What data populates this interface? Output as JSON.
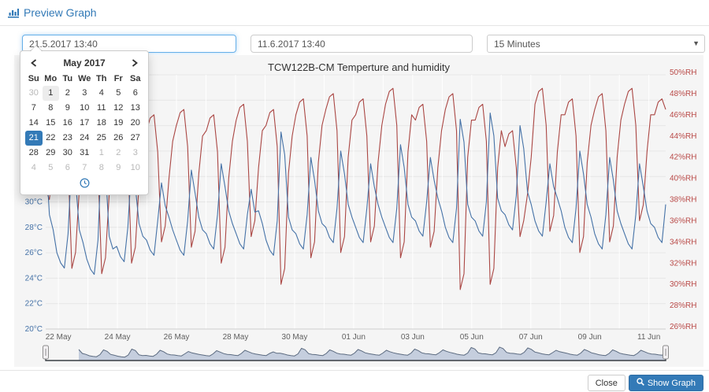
{
  "header": {
    "title": "Preview Graph"
  },
  "controls": {
    "start_value": "21.5.2017 13:40",
    "end_value": "11.6.2017 13:40",
    "interval_value": "15 Minutes"
  },
  "calendar": {
    "month_label": "May 2017",
    "weekdays": [
      "Su",
      "Mo",
      "Tu",
      "We",
      "Th",
      "Fr",
      "Sa"
    ],
    "weeks": [
      [
        {
          "d": "30",
          "o": 1
        },
        {
          "d": "1",
          "t": 1
        },
        {
          "d": "2"
        },
        {
          "d": "3"
        },
        {
          "d": "4"
        },
        {
          "d": "5"
        },
        {
          "d": "6"
        }
      ],
      [
        {
          "d": "7"
        },
        {
          "d": "8"
        },
        {
          "d": "9"
        },
        {
          "d": "10"
        },
        {
          "d": "11"
        },
        {
          "d": "12"
        },
        {
          "d": "13"
        }
      ],
      [
        {
          "d": "14"
        },
        {
          "d": "15"
        },
        {
          "d": "16"
        },
        {
          "d": "17"
        },
        {
          "d": "18"
        },
        {
          "d": "19"
        },
        {
          "d": "20"
        }
      ],
      [
        {
          "d": "21",
          "s": 1
        },
        {
          "d": "22"
        },
        {
          "d": "23"
        },
        {
          "d": "24"
        },
        {
          "d": "25"
        },
        {
          "d": "26"
        },
        {
          "d": "27"
        }
      ],
      [
        {
          "d": "28"
        },
        {
          "d": "29"
        },
        {
          "d": "30"
        },
        {
          "d": "31"
        },
        {
          "d": "1",
          "o": 1
        },
        {
          "d": "2",
          "o": 1
        },
        {
          "d": "3",
          "o": 1
        }
      ],
      [
        {
          "d": "4",
          "o": 1
        },
        {
          "d": "5",
          "o": 1
        },
        {
          "d": "6",
          "o": 1
        },
        {
          "d": "7",
          "o": 1
        },
        {
          "d": "8",
          "o": 1
        },
        {
          "d": "9",
          "o": 1
        },
        {
          "d": "10",
          "o": 1
        }
      ]
    ]
  },
  "footer": {
    "close_label": "Close",
    "show_graph_label": "Show Graph"
  },
  "colors": {
    "accent": "#337ab7",
    "temperature": "#4572a7",
    "humidity": "#aa4643",
    "chart_bg": "#f5f5f5",
    "grid_h": "#e6e6e6",
    "grid_v": "#ffffff",
    "nav_fill": "#bcc7d9",
    "nav_line": "#5c6b80",
    "nav_outline": "#3a3f45"
  },
  "chart_data": {
    "type": "line",
    "title": "TCW122B-CM Temperture and humidity",
    "x_range": {
      "start": "21 May 2017 13:40",
      "end": "11 Jun 2017 13:40"
    },
    "sample_interval_hours": 3,
    "x_tick_labels": [
      "22 May",
      "24 May",
      "26 May",
      "28 May",
      "30 May",
      "01 Jun",
      "03 Jun",
      "05 Jun",
      "07 Jun",
      "09 Jun",
      "11 Jun"
    ],
    "y_left": {
      "unit": "°C",
      "min": 20,
      "max": 40,
      "step": 2,
      "color": "#4572a7"
    },
    "y_right": {
      "unit": "%RH",
      "min": 26,
      "max": 50,
      "step": 2,
      "color": "#b94a48"
    },
    "legend": "off",
    "grid": "on",
    "series": [
      {
        "name": "Humidity",
        "unit": "%RH",
        "axis": "right",
        "color": "#aa4643",
        "values": [
          39.0,
          38.0,
          41.5,
          43.5,
          44.7,
          45.0,
          41.5,
          31.5,
          33.0,
          39.0,
          42.5,
          43.0,
          44.2,
          44.5,
          41.0,
          31.0,
          32.5,
          38.5,
          42.0,
          44.0,
          45.2,
          45.5,
          42.0,
          32.0,
          33.5,
          39.5,
          43.0,
          44.5,
          45.7,
          46.0,
          42.5,
          34.0,
          35.5,
          40.0,
          43.5,
          45.0,
          46.2,
          46.5,
          43.0,
          33.5,
          35.0,
          40.5,
          44.0,
          44.5,
          45.7,
          46.0,
          42.5,
          32.0,
          33.5,
          40.0,
          43.5,
          45.5,
          46.7,
          47.0,
          43.5,
          34.5,
          36.0,
          41.0,
          44.5,
          45.0,
          46.2,
          46.5,
          43.0,
          30.0,
          31.5,
          40.5,
          44.0,
          46.0,
          47.2,
          47.5,
          44.0,
          32.5,
          34.0,
          41.5,
          45.0,
          46.5,
          47.7,
          48.0,
          44.5,
          33.0,
          34.5,
          42.0,
          45.5,
          46.0,
          47.2,
          47.5,
          44.0,
          34.0,
          35.5,
          41.5,
          45.0,
          47.0,
          48.2,
          48.5,
          45.0,
          32.5,
          34.0,
          42.5,
          46.0,
          45.5,
          46.7,
          47.0,
          43.5,
          33.5,
          35.0,
          41.0,
          44.5,
          46.5,
          47.7,
          48.0,
          44.5,
          29.5,
          31.0,
          42.0,
          45.5,
          45.5,
          46.7,
          47.0,
          43.5,
          30.0,
          31.5,
          41.0,
          44.5,
          43.0,
          44.2,
          44.5,
          41.0,
          34.5,
          36.0,
          38.5,
          42.0,
          47.0,
          48.2,
          48.5,
          45.0,
          35.0,
          36.5,
          42.5,
          46.0,
          46.0,
          47.2,
          47.5,
          44.0,
          33.0,
          34.5,
          41.5,
          45.0,
          46.5,
          47.7,
          48.0,
          44.5,
          34.0,
          35.5,
          42.0,
          45.5,
          47.0,
          48.2,
          48.5,
          45.0,
          36.0,
          37.5,
          42.5,
          46.0,
          46.0,
          47.2,
          47.5,
          46.5
        ]
      },
      {
        "name": "Temperature",
        "unit": "°C",
        "axis": "left",
        "color": "#4572a7",
        "values": [
          34.0,
          29.0,
          27.8,
          26.0,
          25.2,
          24.8,
          27.5,
          33.5,
          31.7,
          27.8,
          26.8,
          25.5,
          24.7,
          24.3,
          27.0,
          34.5,
          32.7,
          27.3,
          26.3,
          26.5,
          25.7,
          25.3,
          28.0,
          33.0,
          31.2,
          28.3,
          27.3,
          27.0,
          26.2,
          25.8,
          28.5,
          31.5,
          29.7,
          28.8,
          27.8,
          27.0,
          26.2,
          25.8,
          28.5,
          32.5,
          30.7,
          28.8,
          27.8,
          27.5,
          26.7,
          26.3,
          29.0,
          33.0,
          31.2,
          29.3,
          28.3,
          27.5,
          26.7,
          26.3,
          29.0,
          31.0,
          29.2,
          29.3,
          28.3,
          27.0,
          26.2,
          25.8,
          28.5,
          35.5,
          33.7,
          28.8,
          27.8,
          27.5,
          26.7,
          26.3,
          29.0,
          33.5,
          31.7,
          29.3,
          28.3,
          28.0,
          27.2,
          26.8,
          29.5,
          34.0,
          32.2,
          29.8,
          28.8,
          28.0,
          27.2,
          26.8,
          29.5,
          33.0,
          31.2,
          29.8,
          28.8,
          28.0,
          27.2,
          26.8,
          29.5,
          34.5,
          32.7,
          29.8,
          28.8,
          28.5,
          27.7,
          27.3,
          30.0,
          33.5,
          31.7,
          30.3,
          29.3,
          28.0,
          27.2,
          26.8,
          29.5,
          36.5,
          34.7,
          29.8,
          28.8,
          28.5,
          27.7,
          27.3,
          30.0,
          37.0,
          35.2,
          30.3,
          29.3,
          29.0,
          28.2,
          27.8,
          30.5,
          36.0,
          34.2,
          30.8,
          29.8,
          28.5,
          27.7,
          27.3,
          30.0,
          33.0,
          31.2,
          30.3,
          29.3,
          28.0,
          27.2,
          26.8,
          29.5,
          34.0,
          32.2,
          29.8,
          28.8,
          27.5,
          26.7,
          26.3,
          29.0,
          33.5,
          31.7,
          29.3,
          28.3,
          27.5,
          26.7,
          26.3,
          29.0,
          33.0,
          31.2,
          29.3,
          28.3,
          28.0,
          27.2,
          26.8,
          29.8
        ]
      }
    ]
  }
}
